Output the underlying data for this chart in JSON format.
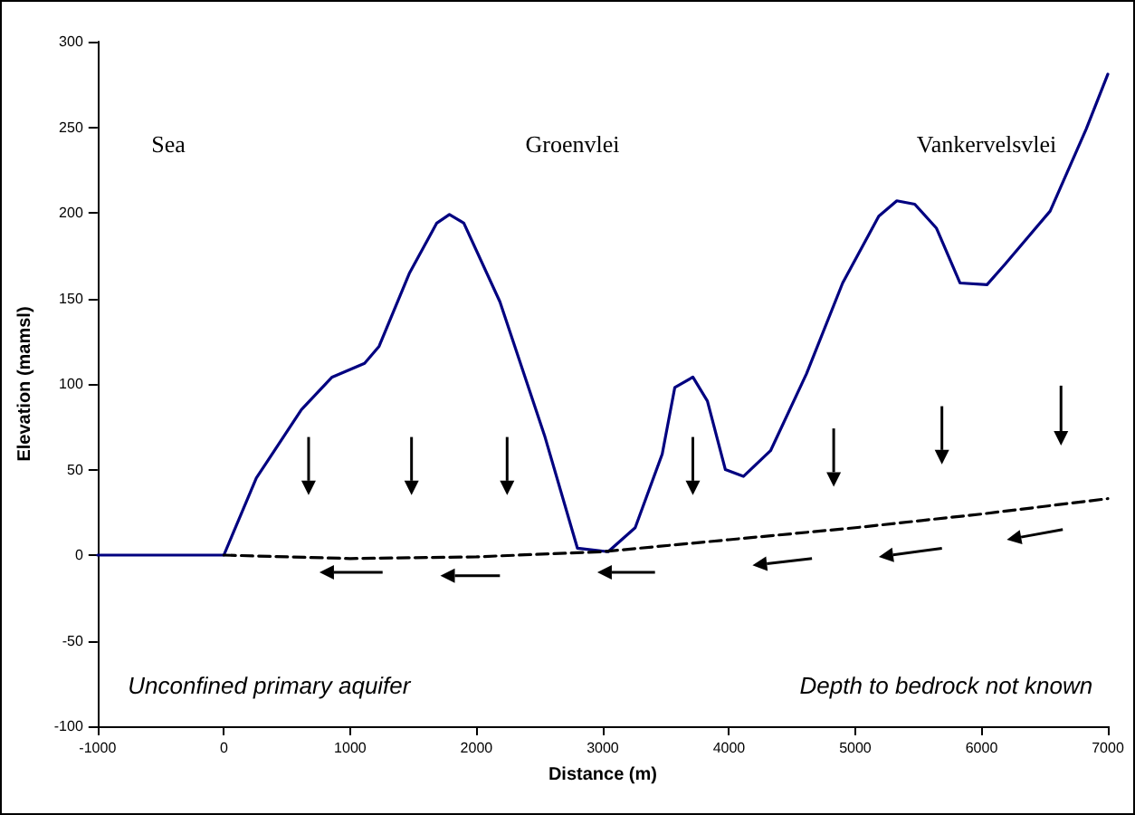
{
  "chart_data": {
    "type": "line",
    "xlabel": "Distance (m)",
    "ylabel": "Elevation (mamsl)",
    "xlim": [
      -1000,
      7000
    ],
    "xticks": [
      -1000,
      0,
      1000,
      2000,
      3000,
      4000,
      5000,
      6000,
      7000
    ],
    "ylim": [
      -100,
      300
    ],
    "yticks": [
      -100,
      -50,
      0,
      50,
      100,
      150,
      200,
      250,
      300
    ],
    "grid": false,
    "marker": "none",
    "series": [
      {
        "color": "#000080",
        "line_style": "solid",
        "x": [
          -1000,
          0,
          257,
          614,
          857,
          1114,
          1229,
          1471,
          1686,
          1786,
          1900,
          2186,
          2543,
          2800,
          3043,
          3257,
          3471,
          3571,
          3714,
          3829,
          3971,
          4114,
          4329,
          4614,
          4900,
          5186,
          5329,
          5471,
          5643,
          5829,
          6043,
          6186,
          6543,
          6829,
          7000
        ],
        "values": [
          0,
          0,
          45,
          85,
          104,
          112,
          122,
          165,
          194,
          199,
          194,
          148,
          69,
          4,
          2,
          16,
          59,
          98,
          104,
          90,
          50,
          46,
          61,
          106,
          159,
          198,
          207,
          205,
          191,
          159,
          158,
          170,
          201,
          249,
          281
        ]
      },
      {
        "color": "#000000",
        "line_style": "dashed",
        "x": [
          0,
          1000,
          2000,
          3000,
          4000,
          5000,
          6000,
          7000
        ],
        "values": [
          0,
          -2,
          -1,
          2,
          9,
          16,
          24,
          33
        ]
      }
    ],
    "annotations": [
      "Sea",
      "Groenvlei",
      "Vankervelsvlei",
      "Unconfined primary aquifer",
      "Depth to bedrock not known"
    ]
  }
}
